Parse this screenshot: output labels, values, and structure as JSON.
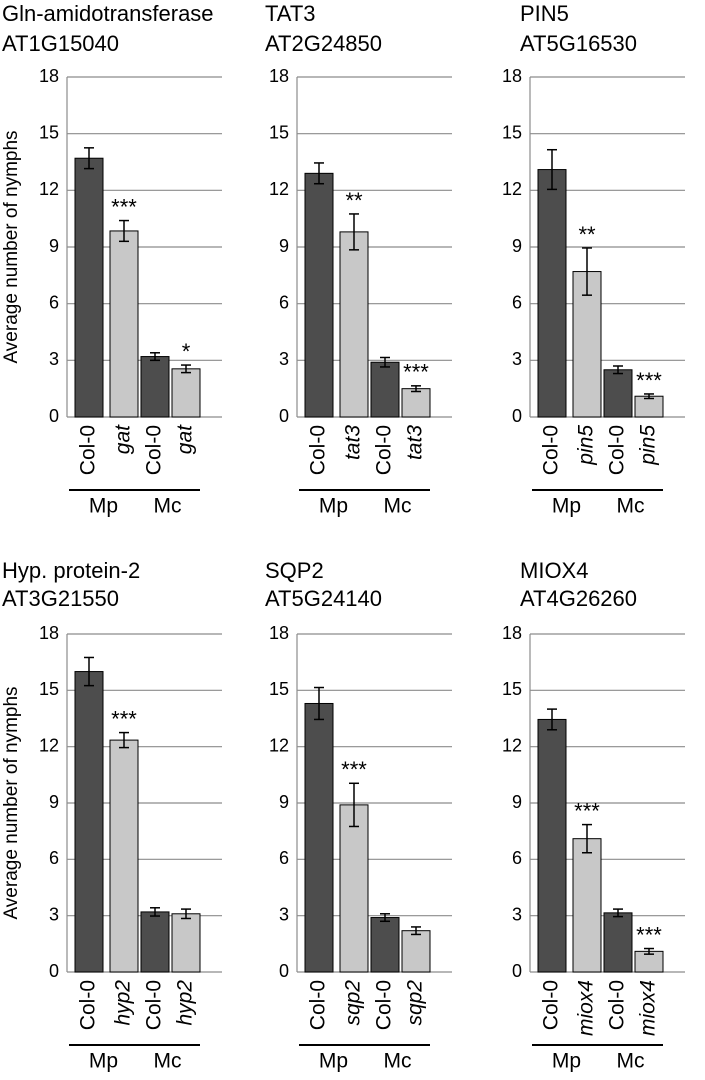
{
  "chart_data": [
    {
      "type": "bar",
      "title": "Gln-amidotransferase",
      "subtitle": "AT1G15040",
      "ylabel": "Average number of nymphs",
      "categories": [
        "Col-0",
        "gat",
        "Col-0",
        "gat"
      ],
      "italic": [
        false,
        true,
        false,
        true
      ],
      "groups": [
        "Mp",
        "Mc"
      ],
      "values": [
        13.7,
        9.85,
        3.2,
        2.55
      ],
      "errors": [
        0.55,
        0.55,
        0.2,
        0.2
      ],
      "annotations": [
        null,
        "***",
        null,
        "*"
      ],
      "colors": [
        "#4d4d4d",
        "#c8c8c8",
        "#4d4d4d",
        "#c8c8c8"
      ],
      "ylim": [
        0,
        18
      ],
      "yticks": [
        0,
        3,
        6,
        9,
        12,
        15,
        18
      ],
      "grid": true
    },
    {
      "type": "bar",
      "title": "TAT3",
      "subtitle": "AT2G24850",
      "categories": [
        "Col-0",
        "tat3",
        "Col-0",
        "tat3"
      ],
      "italic": [
        false,
        true,
        false,
        true
      ],
      "groups": [
        "Mp",
        "Mc"
      ],
      "values": [
        12.9,
        9.8,
        2.9,
        1.5
      ],
      "errors": [
        0.55,
        0.95,
        0.25,
        0.15
      ],
      "annotations": [
        null,
        "**",
        null,
        "***"
      ],
      "colors": [
        "#4d4d4d",
        "#c8c8c8",
        "#4d4d4d",
        "#c8c8c8"
      ],
      "ylim": [
        0,
        18
      ],
      "yticks": [
        0,
        3,
        6,
        9,
        12,
        15,
        18
      ],
      "grid": true
    },
    {
      "type": "bar",
      "title": "PIN5",
      "subtitle": "AT5G16530",
      "categories": [
        "Col-0",
        "pin5",
        "Col-0",
        "pin5"
      ],
      "italic": [
        false,
        true,
        false,
        true
      ],
      "groups": [
        "Mp",
        "Mc"
      ],
      "values": [
        13.1,
        7.7,
        2.5,
        1.1
      ],
      "errors": [
        1.05,
        1.25,
        0.2,
        0.12
      ],
      "annotations": [
        null,
        "**",
        null,
        "***"
      ],
      "colors": [
        "#4d4d4d",
        "#c8c8c8",
        "#4d4d4d",
        "#c8c8c8"
      ],
      "ylim": [
        0,
        18
      ],
      "yticks": [
        0,
        3,
        6,
        9,
        12,
        15,
        18
      ],
      "grid": true
    },
    {
      "type": "bar",
      "title": "Hyp. protein-2",
      "subtitle": "AT3G21550",
      "ylabel": "Average number of nymphs",
      "categories": [
        "Col-0",
        "hyp2",
        "Col-0",
        "hyp2"
      ],
      "italic": [
        false,
        true,
        false,
        true
      ],
      "groups": [
        "Mp",
        "Mc"
      ],
      "values": [
        16.0,
        12.35,
        3.2,
        3.1
      ],
      "errors": [
        0.75,
        0.4,
        0.22,
        0.25
      ],
      "annotations": [
        null,
        "***",
        null,
        null
      ],
      "colors": [
        "#4d4d4d",
        "#c8c8c8",
        "#4d4d4d",
        "#c8c8c8"
      ],
      "ylim": [
        0,
        18
      ],
      "yticks": [
        0,
        3,
        6,
        9,
        12,
        15,
        18
      ],
      "grid": true
    },
    {
      "type": "bar",
      "title": "SQP2",
      "subtitle": "AT5G24140",
      "categories": [
        "Col-0",
        "sqp2",
        "Col-0",
        "sqp2"
      ],
      "italic": [
        false,
        true,
        false,
        true
      ],
      "groups": [
        "Mp",
        "Mc"
      ],
      "values": [
        14.3,
        8.9,
        2.9,
        2.2
      ],
      "errors": [
        0.85,
        1.15,
        0.2,
        0.2
      ],
      "annotations": [
        null,
        "***",
        null,
        null
      ],
      "colors": [
        "#4d4d4d",
        "#c8c8c8",
        "#4d4d4d",
        "#c8c8c8"
      ],
      "ylim": [
        0,
        18
      ],
      "yticks": [
        0,
        3,
        6,
        9,
        12,
        15,
        18
      ],
      "grid": true
    },
    {
      "type": "bar",
      "title": "MIOX4",
      "subtitle": "AT4G26260",
      "categories": [
        "Col-0",
        "miox4",
        "Col-0",
        "miox4"
      ],
      "italic": [
        false,
        true,
        false,
        true
      ],
      "groups": [
        "Mp",
        "Mc"
      ],
      "values": [
        13.45,
        7.1,
        3.15,
        1.1
      ],
      "errors": [
        0.55,
        0.75,
        0.2,
        0.15
      ],
      "annotations": [
        null,
        "***",
        null,
        "***"
      ],
      "colors": [
        "#4d4d4d",
        "#c8c8c8",
        "#4d4d4d",
        "#c8c8c8"
      ],
      "ylim": [
        0,
        18
      ],
      "yticks": [
        0,
        3,
        6,
        9,
        12,
        15,
        18
      ],
      "grid": true
    }
  ]
}
